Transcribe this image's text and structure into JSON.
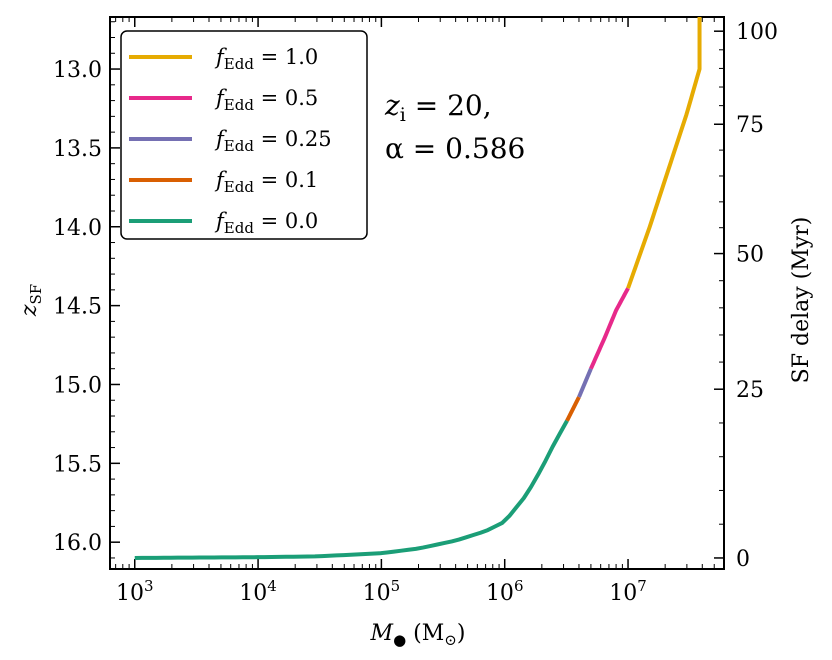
{
  "chart_data": {
    "type": "line",
    "xscale": "log",
    "xlim": [
      630,
      60000000
    ],
    "ylim": [
      12.67,
      16.17
    ],
    "y_inverted": true,
    "xlabel": "M● (M⊙)",
    "xlabel_main": "M",
    "xlabel_sub": "●",
    "xlabel_unit_prefix": " (M",
    "xlabel_unit_sub": "⊙",
    "xlabel_unit_suffix": ")",
    "ylabel": "z_SF",
    "ylabel_main": "z",
    "ylabel_sub": "SF",
    "y2label": "SF delay (Myr)",
    "x_ticks": [
      {
        "value": 1000,
        "base": "10",
        "exp": "3"
      },
      {
        "value": 10000,
        "base": "10",
        "exp": "4"
      },
      {
        "value": 100000,
        "base": "10",
        "exp": "5"
      },
      {
        "value": 1000000,
        "base": "10",
        "exp": "6"
      },
      {
        "value": 10000000,
        "base": "10",
        "exp": "7"
      }
    ],
    "y_ticks": [
      "13.0",
      "13.5",
      "14.0",
      "14.5",
      "15.0",
      "15.5",
      "16.0"
    ],
    "y2_ticks": [
      {
        "label": "0",
        "z": 16.1
      },
      {
        "label": "25",
        "z": 15.03
      },
      {
        "label": "50",
        "z": 14.17
      },
      {
        "label": "75",
        "z": 13.35
      },
      {
        "label": "100",
        "z": 12.76
      }
    ],
    "annotation_line1": "zᵢ = 20,",
    "annotation_line1_main": "z",
    "annotation_line1_sub": "i",
    "annotation_line1_rest": " = 20,",
    "annotation_line2": "α = 0.586",
    "curve": [
      [
        1000,
        16.1
      ],
      [
        10000,
        16.095
      ],
      [
        30000,
        16.09
      ],
      [
        100000,
        16.07
      ],
      [
        200000,
        16.04
      ],
      [
        400000,
        15.99
      ],
      [
        700000,
        15.93
      ],
      [
        1000000,
        15.87
      ],
      [
        1500000,
        15.7
      ],
      [
        2000000,
        15.53
      ],
      [
        2500000,
        15.38
      ],
      [
        3200000,
        15.23
      ],
      [
        4000000,
        15.08
      ],
      [
        5000000,
        14.9
      ],
      [
        6500000,
        14.7
      ],
      [
        8000000,
        14.53
      ],
      [
        10000000,
        14.39
      ],
      [
        15000000,
        14.0
      ],
      [
        20000000,
        13.7
      ],
      [
        30000000,
        13.28
      ],
      [
        38000000,
        13.0
      ],
      [
        38000000,
        12.67
      ]
    ],
    "series": [
      {
        "name": "f_Edd = 1.0",
        "sub": "Edd",
        "value": "1.0",
        "color": "#e6ab02",
        "x_range": [
          10000000,
          38000000
        ]
      },
      {
        "name": "f_Edd = 0.5",
        "sub": "Edd",
        "value": "0.5",
        "color": "#e7298a",
        "x_range": [
          5000000,
          10000000
        ]
      },
      {
        "name": "f_Edd = 0.25",
        "sub": "Edd",
        "value": "0.25",
        "color": "#7570b3",
        "x_range": [
          4000000,
          5000000
        ]
      },
      {
        "name": "f_Edd = 0.1",
        "sub": "Edd",
        "value": "0.1",
        "color": "#d95f02",
        "x_range": [
          3200000,
          4000000
        ]
      },
      {
        "name": "f_Edd = 0.0",
        "sub": "Edd",
        "value": "0.0",
        "color": "#1b9e77",
        "x_range": [
          1000,
          3200000
        ]
      }
    ],
    "legend_position": "upper-left"
  }
}
